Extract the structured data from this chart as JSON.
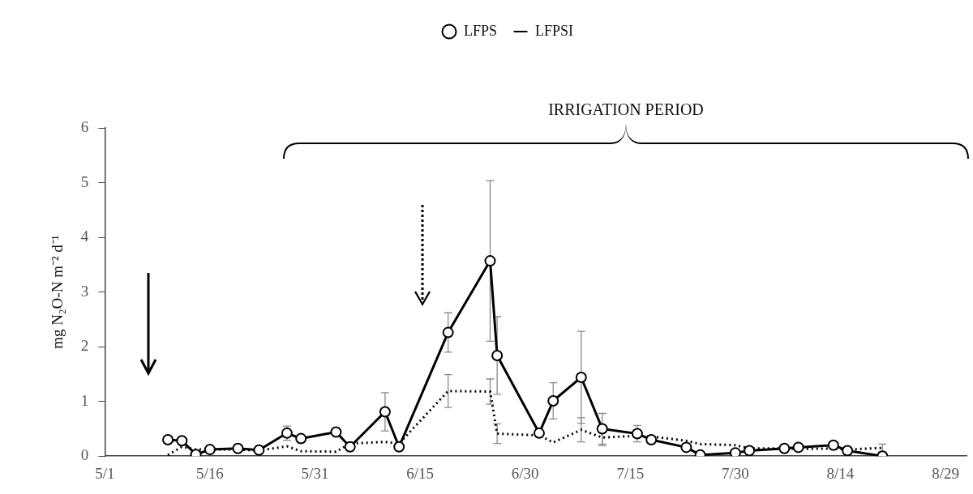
{
  "chart_data": {
    "type": "line",
    "ylabel": "mg N₂O-N m⁻² d⁻¹",
    "annotations": [
      "IRRIGATION PERIOD"
    ],
    "x": [
      "--05-10",
      "--05-12",
      "--05-14",
      "--05-16",
      "--05-20",
      "--05-23",
      "--05-27",
      "--05-29",
      "--06-03",
      "--06-05",
      "--06-10",
      "--06-12",
      "--06-19",
      "--06-25",
      "--06-26",
      "--07-02",
      "--07-04",
      "--07-08",
      "--07-11",
      "--07-16",
      "--07-18",
      "--07-23",
      "--07-25",
      "--07-30",
      "--08-01",
      "--08-06",
      "--08-08",
      "--08-13",
      "--08-15",
      "--08-20"
    ],
    "series": [
      {
        "name": "LFPS",
        "color": "#000000",
        "marker": "circle",
        "line_style": "solid",
        "values": [
          0.3,
          0.28,
          0.03,
          0.12,
          0.14,
          0.11,
          0.42,
          0.32,
          0.44,
          0.17,
          0.81,
          0.17,
          2.26,
          3.57,
          1.84,
          0.42,
          1.01,
          1.44,
          0.5,
          0.41,
          0.3,
          0.16,
          0.02,
          0.06,
          0.1,
          0.14,
          0.16,
          0.2,
          0.1,
          0.0
        ],
        "errors": [
          null,
          null,
          null,
          null,
          null,
          null,
          0.13,
          null,
          null,
          null,
          0.35,
          null,
          0.36,
          1.47,
          0.71,
          null,
          0.33,
          0.84,
          0.28,
          0.15,
          null,
          null,
          null,
          null,
          null,
          null,
          null,
          null,
          null,
          null
        ]
      },
      {
        "name": "LFPSI",
        "color": "#000000",
        "marker": "none",
        "line_style": "dotted",
        "values": [
          0.02,
          0.17,
          0.12,
          0.12,
          0.12,
          0.1,
          0.18,
          0.09,
          0.08,
          0.23,
          0.26,
          0.23,
          1.19,
          1.18,
          0.41,
          0.38,
          0.25,
          0.48,
          0.34,
          0.37,
          0.36,
          0.28,
          0.22,
          0.2,
          0.14,
          0.14,
          0.13,
          0.14,
          0.12,
          0.15
        ],
        "errors": [
          null,
          null,
          null,
          null,
          null,
          null,
          null,
          null,
          null,
          null,
          null,
          null,
          0.3,
          0.23,
          0.18,
          null,
          null,
          0.22,
          0.15,
          null,
          null,
          null,
          null,
          null,
          null,
          null,
          null,
          null,
          null,
          0.07
        ]
      }
    ],
    "xlim": [
      "--05-01",
      "--09-01"
    ],
    "xticks": [
      {
        "value": "--05-01",
        "label": "5/1"
      },
      {
        "value": "--05-16",
        "label": "5/16"
      },
      {
        "value": "--05-31",
        "label": "5/31"
      },
      {
        "value": "--06-15",
        "label": "6/15"
      },
      {
        "value": "--06-30",
        "label": "6/30"
      },
      {
        "value": "--07-15",
        "label": "7/15"
      },
      {
        "value": "--07-30",
        "label": "7/30"
      },
      {
        "value": "--08-14",
        "label": "8/14"
      },
      {
        "value": "--08-29",
        "label": "8/29"
      }
    ],
    "ylim": [
      0,
      6
    ],
    "yticks": [
      0,
      1,
      2,
      3,
      4,
      5,
      6
    ],
    "grid": false,
    "legend": "top"
  }
}
